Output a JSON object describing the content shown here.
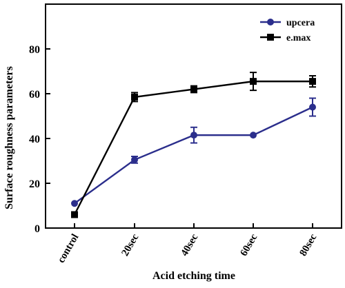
{
  "chart_data": {
    "type": "line",
    "title": "",
    "xlabel": "Acid etching time",
    "ylabel": "Surface roughness parameters",
    "categories": [
      "control",
      "20sec",
      "40sec",
      "60sec",
      "80sec"
    ],
    "ylim": [
      0,
      100
    ],
    "yticks": [
      "0",
      "20",
      "40",
      "60",
      "80"
    ],
    "grid": false,
    "legend_position": "top-right",
    "series": [
      {
        "name": "upcera",
        "color": "#2b2e8c",
        "marker": "circle",
        "values": [
          11,
          30.5,
          41.5,
          41.5,
          54
        ],
        "errors": [
          0,
          1.5,
          3.5,
          0,
          4
        ]
      },
      {
        "name": "e.max",
        "color": "#000000",
        "marker": "square",
        "values": [
          6,
          58.5,
          62,
          65.5,
          65.5
        ],
        "errors": [
          0,
          2,
          1.5,
          4,
          2.5
        ]
      }
    ]
  }
}
